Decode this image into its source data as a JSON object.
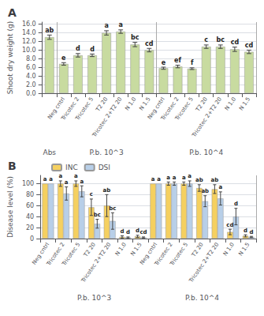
{
  "chart_data": [
    {
      "type": "bar",
      "title": "A",
      "ylabel": "Shoot dry weight (g)",
      "groups": [
        {
          "label": "Abs",
          "categories": [
            null
          ]
        },
        {
          "label": "P.b. 10^3",
          "categories": [
            "Neg cntrl",
            "Tricotec 2",
            "Tricotec 5",
            "T2 20",
            "Tricotec 2+T2 20",
            "N 1.0",
            "N 1.5"
          ]
        },
        {
          "label": "P.b. 10^4",
          "categories": [
            "Neg cntrl",
            "Tricotec 2",
            "Tricotec 5",
            "T2 20",
            "Tricotec 2+T2 20",
            "N 1.0",
            "N 1.5"
          ]
        }
      ],
      "series": [
        {
          "color": "#c8dba0",
          "values": [
            13.0,
            6.8,
            8.8,
            8.8,
            14.0,
            14.3,
            11.3,
            10.0,
            5.8,
            6.2,
            5.7,
            10.8,
            10.8,
            10.2,
            9.6
          ],
          "errors": [
            0.5,
            0.3,
            0.4,
            0.3,
            0.5,
            0.4,
            0.5,
            0.4,
            0.25,
            0.3,
            0.2,
            0.4,
            0.4,
            0.5,
            0.4
          ],
          "annotations": [
            "ab",
            "e",
            "d",
            "d",
            "a",
            "a",
            "bc",
            "cd",
            "e",
            "ef",
            "f",
            "c",
            "bc",
            "cd",
            "cd"
          ]
        }
      ],
      "ylim": [
        0,
        16.5
      ],
      "yticks": [
        {
          "value": 0,
          "label": "0.0"
        },
        {
          "value": 2,
          "label": "2.0"
        },
        {
          "value": 4,
          "label": "4.0"
        },
        {
          "value": 6,
          "label": "6.0"
        },
        {
          "value": 8,
          "label": "8.0"
        },
        {
          "value": 10,
          "label": "10.0"
        },
        {
          "value": 12,
          "label": "12.0"
        },
        {
          "value": 14,
          "label": "14.0"
        },
        {
          "value": 16,
          "label": "16.0"
        }
      ],
      "grid": true
    },
    {
      "type": "bar",
      "title": "B",
      "ylabel": "Disease level (%)",
      "groups": [
        {
          "label": "P.b. 10^3",
          "categories": [
            "Neg cntrl",
            "Tricotec 2",
            "Tricotec 5",
            "T2 20",
            "Tricotec 2+T2 20",
            "N 1.0",
            "N 1.5"
          ]
        },
        {
          "label": "P.b. 10^4",
          "categories": [
            "Neg cntrl",
            "Tricotec 2",
            "Tricotec 5",
            "T2 20",
            "Tricotec 2+T2 20",
            "N 1.0",
            "N 1.5"
          ]
        }
      ],
      "series": [
        {
          "name": "INC",
          "color": "#f5d060",
          "values": [
            100,
            100,
            100,
            57,
            60,
            3,
            4,
            100,
            100,
            100,
            92,
            90,
            12,
            5
          ],
          "errors": [
            0,
            5,
            5,
            15,
            20,
            2,
            2,
            0,
            3,
            3,
            6,
            8,
            5,
            2
          ],
          "annotations": [
            "a",
            "a",
            "a",
            "c",
            "ab",
            "d",
            "d",
            "a",
            "a",
            "a",
            "ab",
            "ab",
            "cd",
            "d"
          ]
        },
        {
          "name": "DSI",
          "color": "#b8cfe8",
          "values": [
            100,
            82,
            86,
            27,
            32,
            2,
            2,
            100,
            100,
            100,
            68,
            73,
            40,
            3
          ],
          "errors": [
            0,
            12,
            10,
            8,
            15,
            1,
            1,
            0,
            3,
            5,
            10,
            12,
            15,
            1
          ],
          "annotations": [
            "a",
            "a",
            "a",
            "bc",
            "bc",
            "d",
            "cd",
            "a",
            "a",
            "a",
            "ab",
            "a",
            "d",
            "d"
          ]
        }
      ],
      "ylim": [
        0,
        115
      ],
      "yticks": [
        0,
        20,
        40,
        60,
        80,
        100
      ],
      "grid": true,
      "legend": "top"
    }
  ]
}
